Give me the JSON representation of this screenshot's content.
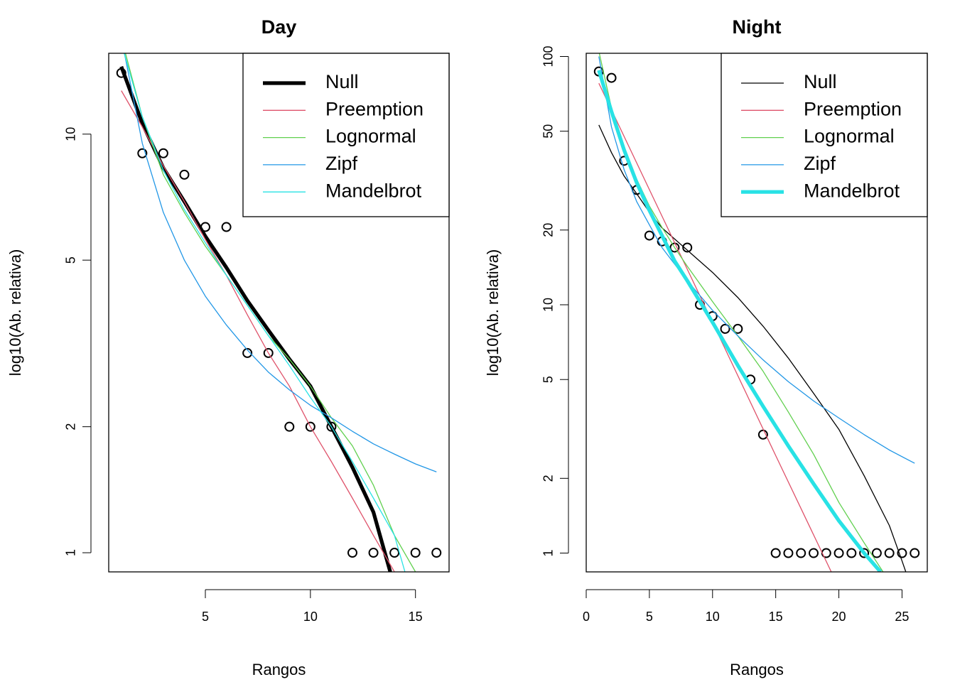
{
  "chart_data": [
    {
      "type": "line",
      "title": "Day",
      "x_label": "Rangos",
      "y_label": "log10(Ab. relativa)",
      "xlim": [
        0.4,
        16.6
      ],
      "xticks": [
        5,
        10,
        15
      ],
      "ylim": [
        0.9,
        15.6
      ],
      "yticks": [
        1,
        2,
        5,
        10
      ],
      "ylog": true,
      "legend": "topright",
      "points": {
        "x": [
          1,
          2,
          3,
          4,
          5,
          6,
          7,
          8,
          9,
          10,
          11,
          12,
          13,
          14,
          15,
          16
        ],
        "y": [
          14,
          9,
          9,
          8,
          6,
          6,
          3,
          3,
          2,
          2,
          2,
          1,
          1,
          1,
          1,
          1
        ]
      },
      "series": [
        {
          "name": "Null",
          "color": "#000000",
          "width": 4,
          "x": [
            1,
            2,
            3,
            4,
            5,
            6,
            7,
            8,
            9,
            10,
            11,
            12,
            13,
            13.8
          ],
          "values": [
            14.5,
            10.6,
            8.3,
            6.9,
            5.7,
            4.8,
            4.0,
            3.4,
            2.9,
            2.5,
            2.0,
            1.6,
            1.25,
            0.9
          ]
        },
        {
          "name": "Preemption",
          "color": "#DF536B",
          "width": 1,
          "x": [
            1,
            2,
            3,
            4,
            5,
            6,
            7,
            8,
            9,
            10,
            11,
            12,
            13,
            14
          ],
          "values": [
            12.7,
            10.4,
            8.4,
            6.9,
            5.6,
            4.6,
            3.7,
            3.0,
            2.5,
            2.0,
            1.65,
            1.35,
            1.1,
            0.9
          ]
        },
        {
          "name": "Lognormal",
          "color": "#61D04F",
          "width": 1,
          "x": [
            1,
            2,
            3,
            4,
            5,
            6,
            7,
            8,
            9,
            10,
            11,
            12,
            13,
            14,
            15
          ],
          "values": [
            17,
            11,
            8,
            6.5,
            5.4,
            4.6,
            3.9,
            3.3,
            2.9,
            2.5,
            2.1,
            1.8,
            1.45,
            1.1,
            0.9
          ]
        },
        {
          "name": "Zipf",
          "color": "#2297E6",
          "width": 1,
          "x": [
            1,
            2,
            3,
            4,
            5,
            6,
            7,
            8,
            9,
            10,
            11,
            12,
            13,
            14,
            15,
            16
          ],
          "values": [
            17,
            9.5,
            6.5,
            5.0,
            4.1,
            3.5,
            3.05,
            2.7,
            2.45,
            2.25,
            2.1,
            1.95,
            1.82,
            1.72,
            1.63,
            1.56
          ]
        },
        {
          "name": "Mandelbrot",
          "color": "#28E2E5",
          "width": 1,
          "x": [
            1,
            2,
            3,
            4,
            5,
            6,
            7,
            8,
            9,
            10,
            11,
            12,
            13,
            14,
            14.5
          ],
          "values": [
            16.5,
            11,
            8.2,
            6.6,
            5.5,
            4.6,
            3.9,
            3.3,
            2.8,
            2.35,
            2.0,
            1.65,
            1.35,
            1.1,
            0.9
          ]
        }
      ]
    },
    {
      "type": "line",
      "title": "Night",
      "x_label": "Rangos",
      "y_label": "log10(Ab. relativa)",
      "xlim": [
        0,
        27
      ],
      "xticks": [
        0,
        5,
        10,
        15,
        20,
        25
      ],
      "ylim": [
        0.84,
        103
      ],
      "yticks": [
        1,
        2,
        5,
        10,
        20,
        50,
        100
      ],
      "ylog": true,
      "legend": "topright",
      "points": {
        "x": [
          1,
          2,
          3,
          4,
          5,
          6,
          7,
          8,
          9,
          10,
          11,
          12,
          13,
          14,
          15,
          16,
          17,
          18,
          19,
          20,
          21,
          22,
          23,
          24,
          25,
          26
        ],
        "y": [
          87,
          82,
          38,
          29,
          19,
          18,
          17,
          17,
          10,
          9,
          8,
          8,
          5,
          3,
          1,
          1,
          1,
          1,
          1,
          1,
          1,
          1,
          1,
          1,
          1,
          1
        ]
      },
      "series": [
        {
          "name": "Null",
          "color": "#000000",
          "width": 1,
          "x": [
            1,
            2,
            3,
            4,
            5,
            6,
            8,
            10,
            12,
            14,
            16,
            18,
            20,
            22,
            24,
            25,
            25.3
          ],
          "values": [
            53,
            41,
            33,
            28,
            23.6,
            20.4,
            16.6,
            13.5,
            10.7,
            8.2,
            6.1,
            4.4,
            3.15,
            2.05,
            1.29,
            0.93,
            0.84
          ]
        },
        {
          "name": "Preemption",
          "color": "#DF536B",
          "width": 1,
          "x": [
            1,
            5,
            10,
            15,
            19.4
          ],
          "values": [
            78,
            29.1,
            8.5,
            2.47,
            0.84
          ]
        },
        {
          "name": "Lognormal",
          "color": "#61D04F",
          "width": 1,
          "x": [
            1,
            2,
            3,
            4,
            5,
            6,
            7,
            8,
            10,
            12,
            14,
            16,
            18,
            20,
            22,
            23.5
          ],
          "values": [
            105,
            62,
            42,
            32,
            25,
            20.5,
            17,
            14.3,
            10.3,
            7.5,
            5.4,
            3.7,
            2.5,
            1.6,
            1.1,
            0.84
          ]
        },
        {
          "name": "Zipf",
          "color": "#2297E6",
          "width": 1,
          "x": [
            1,
            2,
            3,
            4,
            5,
            6,
            8,
            10,
            12,
            14,
            16,
            18,
            20,
            22,
            24,
            26
          ],
          "values": [
            100,
            52,
            35,
            26,
            21,
            17,
            12.5,
            9.5,
            7.5,
            6.0,
            4.9,
            4.1,
            3.5,
            3.0,
            2.6,
            2.3
          ]
        },
        {
          "name": "Mandelbrot",
          "color": "#28E2E5",
          "width": 4,
          "x": [
            1,
            2,
            3,
            4,
            5,
            6,
            7,
            8,
            10,
            12,
            14,
            16,
            18,
            20,
            22,
            23.3
          ],
          "values": [
            88,
            60,
            42,
            31,
            24,
            19,
            15,
            12.5,
            8.5,
            5.7,
            3.9,
            2.7,
            1.9,
            1.35,
            1.0,
            0.84
          ]
        }
      ]
    }
  ]
}
